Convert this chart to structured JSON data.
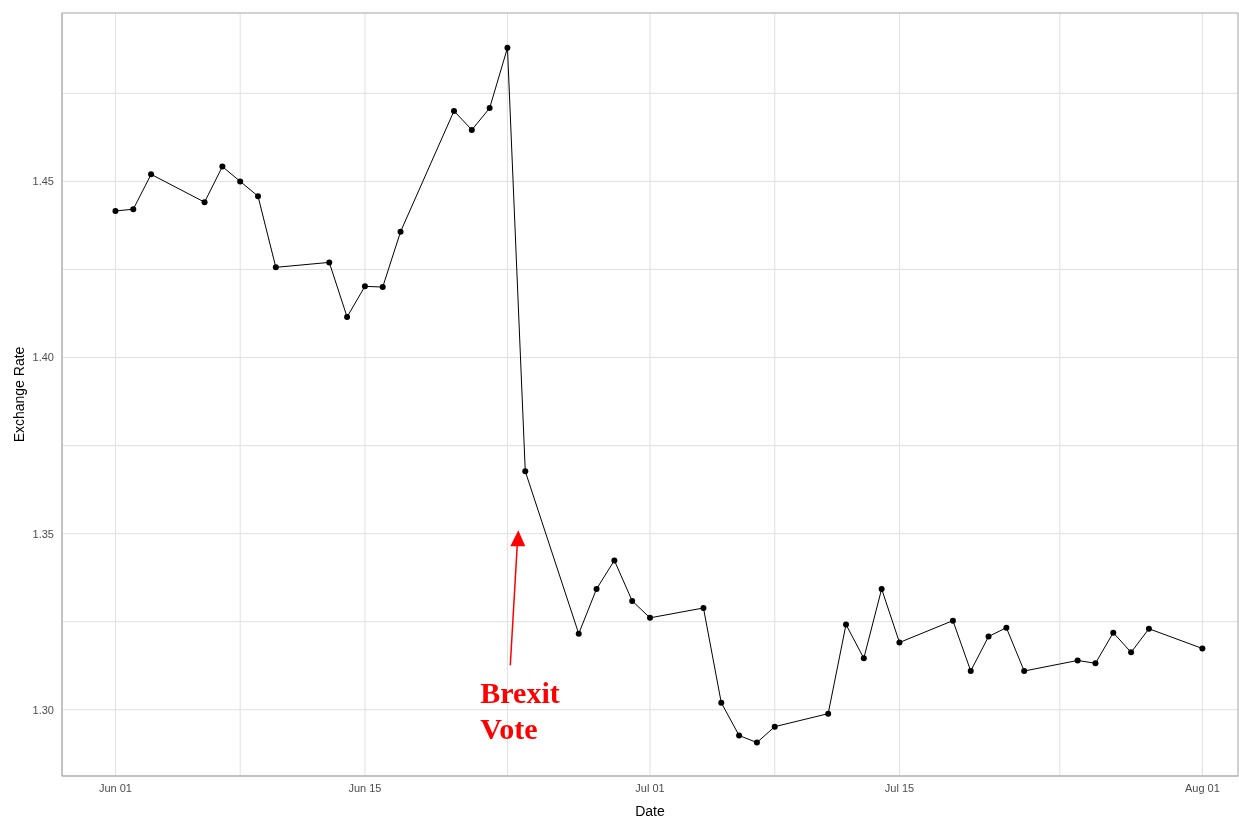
{
  "chart_data": {
    "type": "line",
    "xlabel": "Date",
    "ylabel": "Exchange Rate",
    "x": [
      "--06-01",
      "--06-02",
      "--06-03",
      "--06-06",
      "--06-07",
      "--06-08",
      "--06-09",
      "--06-10",
      "--06-13",
      "--06-14",
      "--06-15",
      "--06-16",
      "--06-17",
      "--06-20",
      "--06-21",
      "--06-22",
      "--06-23",
      "--06-24",
      "--06-27",
      "--06-28",
      "--06-29",
      "--06-30",
      "--07-01",
      "--07-04",
      "--07-05",
      "--07-06",
      "--07-07",
      "--07-08",
      "--07-11",
      "--07-12",
      "--07-13",
      "--07-14",
      "--07-15",
      "--07-18",
      "--07-19",
      "--07-20",
      "--07-21",
      "--07-22",
      "--07-25",
      "--07-26",
      "--07-27",
      "--07-28",
      "--07-29",
      "--08-01"
    ],
    "series": [
      {
        "color": "#000000",
        "values": [
          1.4416,
          1.4421,
          1.452,
          1.4441,
          1.4542,
          1.45,
          1.4458,
          1.4256,
          1.427,
          1.4115,
          1.4202,
          1.42,
          1.4357,
          1.47,
          1.4646,
          1.4708,
          1.4879,
          1.3677,
          1.3216,
          1.3343,
          1.3424,
          1.3309,
          1.3261,
          1.3289,
          1.302,
          1.2927,
          1.2907,
          1.2952,
          1.2989,
          1.3242,
          1.3146,
          1.3343,
          1.3191,
          1.3253,
          1.311,
          1.3208,
          1.3233,
          1.311,
          1.314,
          1.3132,
          1.3219,
          1.3163,
          1.323,
          1.3174
        ]
      }
    ],
    "xlim": [
      "--05-29",
      "--08-03"
    ],
    "xticks": [
      {
        "value": "--06-01",
        "label": "Jun 01"
      },
      {
        "value": "--06-08",
        "label": null
      },
      {
        "value": "--06-15",
        "label": "Jun 15"
      },
      {
        "value": "--06-23",
        "label": null
      },
      {
        "value": "--07-01",
        "label": "Jul 01"
      },
      {
        "value": "--07-08",
        "label": null
      },
      {
        "value": "--07-15",
        "label": "Jul 15"
      },
      {
        "value": "--07-24",
        "label": null
      },
      {
        "value": "--08-01",
        "label": "Aug 01"
      }
    ],
    "ylim": [
      1.2812,
      1.4978
    ],
    "yticks": [
      {
        "value": 1.3,
        "label": "1.30"
      },
      {
        "value": 1.325,
        "label": null
      },
      {
        "value": 1.35,
        "label": "1.35"
      },
      {
        "value": 1.375,
        "label": null
      },
      {
        "value": 1.4,
        "label": "1.40"
      },
      {
        "value": 1.425,
        "label": null
      },
      {
        "value": 1.45,
        "label": "1.45"
      },
      {
        "value": 1.475,
        "label": null
      }
    ],
    "grid": true,
    "marker": "circle",
    "line_style": "solid",
    "annotations": [
      "Brexit Vote"
    ]
  }
}
